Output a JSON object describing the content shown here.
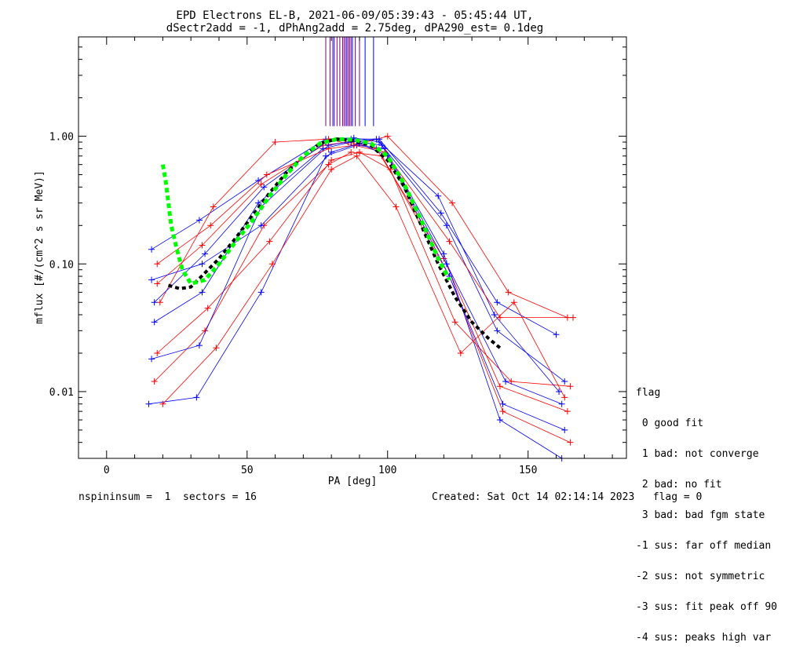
{
  "chart_data": {
    "type": "line",
    "title": "EPD Electrons EL-B, 2021-06-09/05:39:43 - 05:45:44 UT,",
    "subtitle": "dSectr2add = -1, dPhAng2add = 2.75deg, dPA290_est=   0.1deg",
    "xlabel": "PA [deg]",
    "ylabel": "mflux [#/(cm^2 s sr MeV)]",
    "xlim": [
      -10,
      185
    ],
    "ylim": [
      0.003,
      6
    ],
    "yscale": "log",
    "x_ticks": [
      0,
      50,
      100,
      150
    ],
    "x_tick_labels": [
      "0",
      "50",
      "100",
      "150"
    ],
    "y_ticks": [
      0.01,
      0.1,
      1.0
    ],
    "y_tick_labels": [
      "0.01",
      "0.10",
      "1.00"
    ],
    "series": [
      {
        "color": "#ff0000",
        "x": [
          18,
          34,
          55,
          77,
          86,
          96,
          120,
          140,
          164
        ],
        "y": [
          0.07,
          0.14,
          0.42,
          0.85,
          0.9,
          0.8,
          0.11,
          0.011,
          0.007
        ]
      },
      {
        "color": "#0000ff",
        "x": [
          16,
          33,
          54,
          78,
          88,
          97,
          121,
          139,
          163
        ],
        "y": [
          0.13,
          0.22,
          0.45,
          0.95,
          0.97,
          0.9,
          0.2,
          0.03,
          0.012
        ]
      },
      {
        "color": "#ff0000",
        "x": [
          17,
          35,
          56,
          79,
          87,
          98,
          122,
          141,
          165
        ],
        "y": [
          0.012,
          0.03,
          0.2,
          0.6,
          0.75,
          0.7,
          0.08,
          0.007,
          0.004
        ]
      },
      {
        "color": "#0000ff",
        "x": [
          15,
          32,
          55,
          78,
          89,
          99,
          120,
          140,
          162
        ],
        "y": [
          0.008,
          0.009,
          0.06,
          0.7,
          0.85,
          0.8,
          0.12,
          0.006,
          0.003
        ]
      },
      {
        "color": "#ff0000",
        "x": [
          19,
          38,
          60,
          79,
          88,
          100,
          123,
          143,
          164
        ],
        "y": [
          0.05,
          0.28,
          0.9,
          0.95,
          0.85,
          1.0,
          0.3,
          0.06,
          0.038
        ]
      },
      {
        "color": "#0000ff",
        "x": [
          17,
          34,
          54,
          77,
          87,
          97,
          119,
          139,
          160
        ],
        "y": [
          0.035,
          0.06,
          0.3,
          0.8,
          0.9,
          0.95,
          0.25,
          0.05,
          0.028
        ]
      },
      {
        "color": "#ff0000",
        "x": [
          18,
          36,
          58,
          80,
          90,
          101,
          124,
          144,
          165
        ],
        "y": [
          0.02,
          0.045,
          0.15,
          0.65,
          0.75,
          0.55,
          0.035,
          0.012,
          0.011
        ]
      },
      {
        "color": "#0000ff",
        "x": [
          16,
          33,
          55,
          79,
          88,
          98,
          121,
          142,
          162
        ],
        "y": [
          0.018,
          0.023,
          0.28,
          0.85,
          0.92,
          0.85,
          0.1,
          0.012,
          0.008
        ]
      },
      {
        "color": "#ff0000",
        "x": [
          20,
          39,
          59,
          80,
          89,
          103,
          126,
          145,
          163
        ],
        "y": [
          0.008,
          0.022,
          0.1,
          0.55,
          0.7,
          0.28,
          0.02,
          0.05,
          0.009
        ]
      },
      {
        "color": "#0000ff",
        "x": [
          17,
          35,
          56,
          78,
          87,
          96,
          118,
          138,
          161
        ],
        "y": [
          0.05,
          0.12,
          0.4,
          0.9,
          0.95,
          0.95,
          0.34,
          0.04,
          0.01
        ]
      },
      {
        "color": "#ff0000",
        "x": [
          18,
          37,
          57,
          79,
          88,
          99,
          122,
          140,
          166
        ],
        "y": [
          0.1,
          0.2,
          0.5,
          0.8,
          0.85,
          0.75,
          0.15,
          0.038,
          0.038
        ]
      },
      {
        "color": "#0000ff",
        "x": [
          16,
          34,
          55,
          80,
          90,
          100,
          122,
          141,
          163
        ],
        "y": [
          0.075,
          0.1,
          0.2,
          0.75,
          0.88,
          0.7,
          0.08,
          0.008,
          0.005
        ]
      }
    ],
    "median_curve": {
      "color": "#000000",
      "x": [
        22,
        26,
        30,
        35,
        40,
        46,
        52,
        58,
        64,
        70,
        76,
        82,
        88,
        94,
        100,
        106,
        112,
        118,
        124,
        130,
        136,
        140
      ],
      "y": [
        0.068,
        0.064,
        0.066,
        0.085,
        0.11,
        0.16,
        0.24,
        0.36,
        0.52,
        0.7,
        0.88,
        0.95,
        0.92,
        0.85,
        0.65,
        0.4,
        0.2,
        0.1,
        0.055,
        0.035,
        0.026,
        0.022
      ]
    },
    "fit_curve": {
      "color": "#00ff00",
      "x": [
        20,
        21,
        22,
        23,
        25,
        27,
        30,
        35,
        40,
        46,
        52,
        58,
        64,
        70,
        76,
        82,
        88,
        94,
        100,
        106,
        112,
        118,
        122
      ],
      "y": [
        0.6,
        0.45,
        0.3,
        0.2,
        0.13,
        0.09,
        0.07,
        0.075,
        0.1,
        0.15,
        0.22,
        0.34,
        0.5,
        0.7,
        0.88,
        0.95,
        0.94,
        0.88,
        0.7,
        0.42,
        0.22,
        0.11,
        0.075
      ]
    },
    "vertical_marks": {
      "y_range": [
        1.2,
        6
      ],
      "purple_x": [
        78,
        79.5,
        80.5,
        82,
        83,
        84,
        84.5,
        85,
        86,
        86.5,
        87,
        88.5,
        90
      ],
      "blue_x": [
        81,
        85.5,
        87.5,
        92,
        95
      ]
    }
  },
  "legend": {
    "heading": "flag",
    "entries": [
      " 0 good fit",
      " 1 bad: not converge",
      " 2 bad: no fit",
      " 3 bad: bad fgm state",
      "-1 sus: far off median",
      "-2 sus: not symmetric",
      "-3 sus: fit peak off 90",
      "-4 sus: peaks high var"
    ]
  },
  "footer": {
    "left": "nspininsum =  1  sectors = 16",
    "right": "Created: Sat Oct 14 02:14:14 2023   flag = 0"
  }
}
